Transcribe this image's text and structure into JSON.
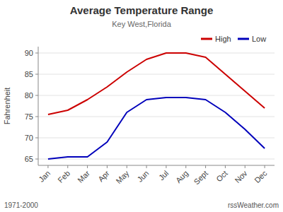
{
  "chart_data": {
    "type": "line",
    "title": "Average Temperature Range",
    "subtitle": "Key West,Florida",
    "y_label": "Fahrenheit",
    "annotations": [
      "1971-2000",
      "rssWeather.com"
    ],
    "categories": [
      "Jan",
      "Feb",
      "Mar",
      "Apr",
      "May",
      "Jun",
      "Jul",
      "Aug",
      "Sept",
      "Oct",
      "Nov",
      "Dec"
    ],
    "series": [
      {
        "name": "High",
        "color": "#cc0000",
        "values": [
          75.5,
          76.5,
          79.0,
          82.0,
          85.5,
          88.5,
          90.0,
          90.0,
          89.0,
          85.0,
          81.0,
          77.0
        ]
      },
      {
        "name": "Low",
        "color": "#0000bb",
        "values": [
          65.0,
          65.5,
          65.5,
          69.0,
          76.0,
          79.0,
          79.5,
          79.5,
          79.0,
          76.0,
          72.0,
          67.5
        ]
      }
    ],
    "ylim": [
      63.5,
      91.5
    ],
    "yticks": [
      65,
      70,
      75,
      80,
      85,
      90
    ],
    "grid": true,
    "legend": "upper right"
  }
}
